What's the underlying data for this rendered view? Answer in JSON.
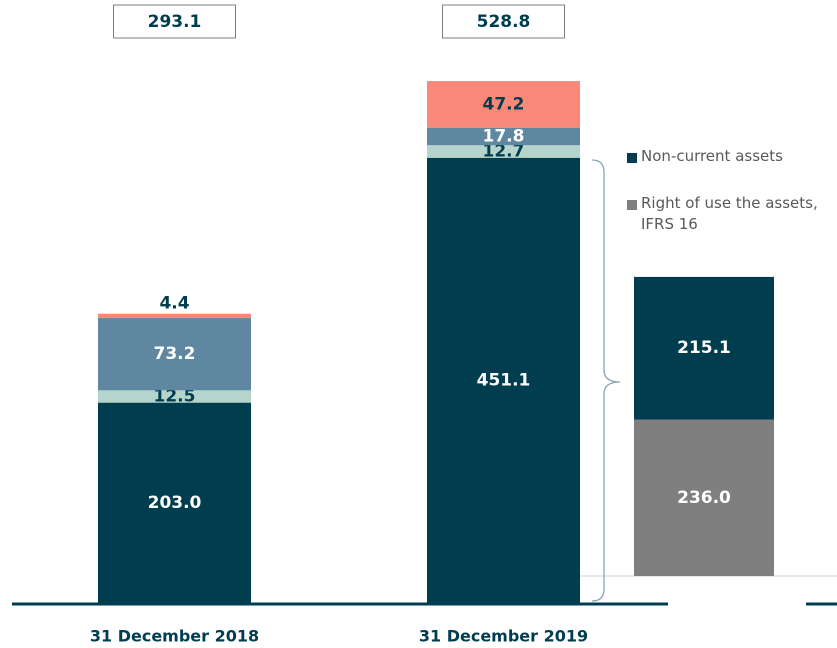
{
  "chart_data": {
    "type": "bar",
    "stacked": true,
    "categories": [
      "31 December 2018",
      "31 December 2019"
    ],
    "totals": [
      293.1,
      528.8
    ],
    "series": [
      {
        "color": "#003d4f",
        "label_color": "#ffffff",
        "values": [
          203.0,
          451.1
        ],
        "value_labels": [
          "203.0",
          "451.1"
        ]
      },
      {
        "color": "#b5d5cc",
        "label_color": "#003d4f",
        "values": [
          12.5,
          12.7
        ]
      },
      {
        "color": "#5f87a1",
        "label_color": "#ffffff",
        "values": [
          73.2,
          17.8
        ]
      },
      {
        "color": "#f98878",
        "label_color": "#003d4f",
        "values": [
          4.4,
          47.2
        ]
      }
    ],
    "breakdown": {
      "series": [
        {
          "name": "Right of use the assets, IFRS 16",
          "color": "#7f7f7f",
          "label_color": "#ffffff",
          "values": [
            236.0
          ],
          "value_labels": [
            "236.0"
          ]
        },
        {
          "name": "Non-current assets",
          "color": "#003d4f",
          "label_color": "#ffffff",
          "values": [
            215.1
          ]
        }
      ]
    }
  }
}
